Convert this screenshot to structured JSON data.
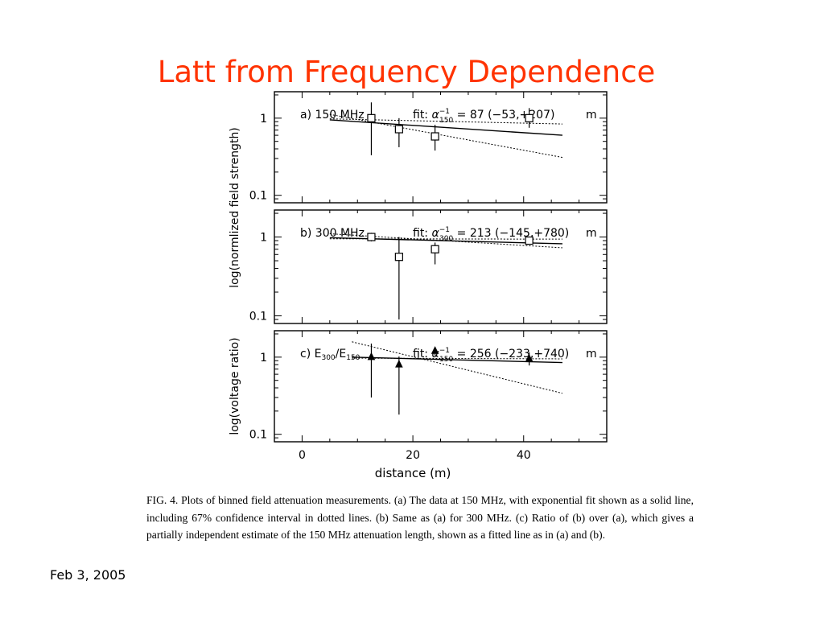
{
  "slide": {
    "title": "Latt from Frequency Dependence",
    "footer": "Feb 3, 2005",
    "title_color": "#ff3300"
  },
  "caption": "FIG. 4. Plots of binned field attenuation measurements. (a) The data at 150 MHz, with exponential fit shown as a solid line, including 67% confidence interval in dotted lines. (b) Same as (a) for 300 MHz. (c) Ratio of (b) over (a), which gives a partially independent estimate of the 150 MHz attenuation length, shown as a fitted line as in (a) and (b).",
  "chart_data": [
    {
      "type": "scatter",
      "panel": "a) 150 MHz",
      "label_parts": [
        "a) 150 MHz"
      ],
      "fit_label": {
        "prefix": "fit: ",
        "symbol": "α",
        "sup": "−1",
        "sub": "150",
        "rest": " = 87 (−53,+207)",
        "unit": "m"
      },
      "ylabel": "log(normlized field strength)",
      "yscale": "log",
      "ylim": [
        0.08,
        2.2
      ],
      "yticks": [
        0.1,
        1
      ],
      "ytick_labels": [
        "0.1",
        "1"
      ],
      "xlim": [
        -5,
        55
      ],
      "marker": "square",
      "points": [
        {
          "x": 12.5,
          "y": 1.0,
          "ylo": 0.33,
          "yhi": 1.6
        },
        {
          "x": 17.5,
          "y": 0.72,
          "ylo": 0.42,
          "yhi": 1.0
        },
        {
          "x": 24.0,
          "y": 0.58,
          "ylo": 0.38,
          "yhi": 0.82
        },
        {
          "x": 41.0,
          "y": 1.0,
          "ylo": 0.75,
          "yhi": 1.35
        }
      ],
      "fit": {
        "x0": 5,
        "x1": 47,
        "y0": 0.95,
        "y1": 0.6
      },
      "conf_lower": {
        "x0": 5,
        "x1": 47,
        "y0": 1.12,
        "y1": 0.31
      },
      "conf_upper": {
        "x0": 5,
        "x1": 47,
        "y0": 0.98,
        "y1": 0.84
      }
    },
    {
      "type": "scatter",
      "panel": "b) 300 MHz",
      "label_parts": [
        "b) 300 MHz"
      ],
      "fit_label": {
        "prefix": "fit: ",
        "symbol": "α",
        "sup": "−1",
        "sub": "300",
        "rest": " = 213 (−145,+780)",
        "unit": "m"
      },
      "ylabel": "log(normlized field strength)",
      "yscale": "log",
      "ylim": [
        0.08,
        2.2
      ],
      "yticks": [
        0.1,
        1
      ],
      "ytick_labels": [
        "0.1",
        "1"
      ],
      "xlim": [
        -5,
        55
      ],
      "marker": "square",
      "points": [
        {
          "x": 12.5,
          "y": 1.0,
          "ylo": 0.88,
          "yhi": 1.13
        },
        {
          "x": 17.5,
          "y": 0.56,
          "ylo": 0.09,
          "yhi": 1.0
        },
        {
          "x": 24.0,
          "y": 0.7,
          "ylo": 0.45,
          "yhi": 0.85
        },
        {
          "x": 41.0,
          "y": 0.9,
          "ylo": 0.82,
          "yhi": 0.98
        }
      ],
      "fit": {
        "x0": 5,
        "x1": 47,
        "y0": 0.98,
        "y1": 0.82
      },
      "conf_lower": {
        "x0": 5,
        "x1": 47,
        "y0": 1.1,
        "y1": 0.73
      },
      "conf_upper": {
        "x0": 5,
        "x1": 47,
        "y0": 0.95,
        "y1": 0.94
      }
    },
    {
      "type": "scatter",
      "panel": "c) E300/E150",
      "label_parts": [
        "c) E",
        "300",
        "/E",
        "150"
      ],
      "fit_label": {
        "prefix": "fit: ",
        "symbol": "α",
        "sup": "−1",
        "sub": "150",
        "rest": " = 256 (−233,+740)",
        "unit": "m"
      },
      "ylabel": "log(voltage ratio)",
      "yscale": "log",
      "ylim": [
        0.08,
        2.2
      ],
      "yticks": [
        0.1,
        1
      ],
      "ytick_labels": [
        "0.1",
        "1"
      ],
      "xlim": [
        -5,
        55
      ],
      "xlabel": "distance (m)",
      "xticks": [
        0,
        20,
        40
      ],
      "xtick_labels": [
        "0",
        "20",
        "40"
      ],
      "marker": "triangle",
      "points": [
        {
          "x": 12.5,
          "y": 1.0,
          "ylo": 0.3,
          "yhi": 1.5
        },
        {
          "x": 17.5,
          "y": 0.8,
          "ylo": 0.18,
          "yhi": 1.02
        },
        {
          "x": 24.0,
          "y": 1.2,
          "ylo": 1.05,
          "yhi": 1.35
        },
        {
          "x": 41.0,
          "y": 0.95,
          "ylo": 0.78,
          "yhi": 1.15
        }
      ],
      "fit": {
        "x0": 9,
        "x1": 47,
        "y0": 1.0,
        "y1": 0.85
      },
      "conf_lower": {
        "x0": 9,
        "x1": 47,
        "y0": 1.58,
        "y1": 0.34
      },
      "conf_upper": {
        "x0": 9,
        "x1": 47,
        "y0": 0.97,
        "y1": 0.95
      }
    }
  ]
}
